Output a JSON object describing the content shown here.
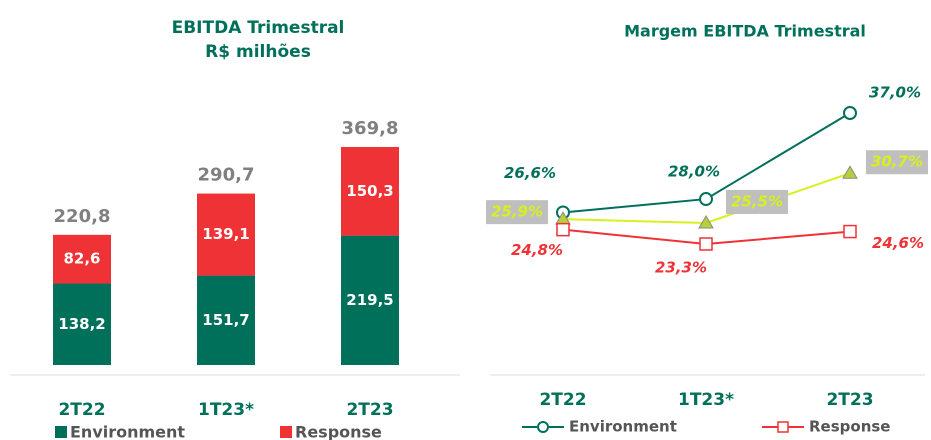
{
  "chart_data": [
    {
      "type": "stacked_bar",
      "title": "EBITDA Trimestral",
      "subtitle": "R$ milhões",
      "categories": [
        "2T22",
        "1T23*",
        "2T23"
      ],
      "series": [
        {
          "name": "Environment",
          "color": "#00705A",
          "values": [
            138.2,
            151.7,
            219.5
          ],
          "value_labels": [
            "138,2",
            "151,7",
            "219,5"
          ]
        },
        {
          "name": "Response",
          "color": "#EE3236",
          "values": [
            82.6,
            139.1,
            150.3
          ],
          "value_labels": [
            "82,6",
            "139,1",
            "150,3"
          ]
        }
      ],
      "totals": {
        "values": [
          220.8,
          290.7,
          369.8
        ],
        "value_labels": [
          "220,8",
          "290,7",
          "369,8"
        ]
      }
    },
    {
      "type": "line",
      "title": "Margem EBITDA Trimestral",
      "categories": [
        "2T22",
        "1T23*",
        "2T23"
      ],
      "series": [
        {
          "name": "Environment",
          "color": "#00705A",
          "marker": "circle",
          "values": [
            26.6,
            28.0,
            37.0
          ],
          "value_labels": [
            "26,6%",
            "28,0%",
            "37,0%"
          ]
        },
        {
          "color": "#D7F01E",
          "marker": "triangle",
          "values": [
            25.9,
            25.5,
            30.7
          ],
          "value_labels": [
            "25,9%",
            "25,5%",
            "30,7%"
          ]
        },
        {
          "name": "Response",
          "color": "#EE3236",
          "marker": "square",
          "values": [
            24.8,
            23.3,
            24.6
          ],
          "value_labels": [
            "24,8%",
            "23,3%",
            "24,6%"
          ]
        }
      ]
    }
  ]
}
